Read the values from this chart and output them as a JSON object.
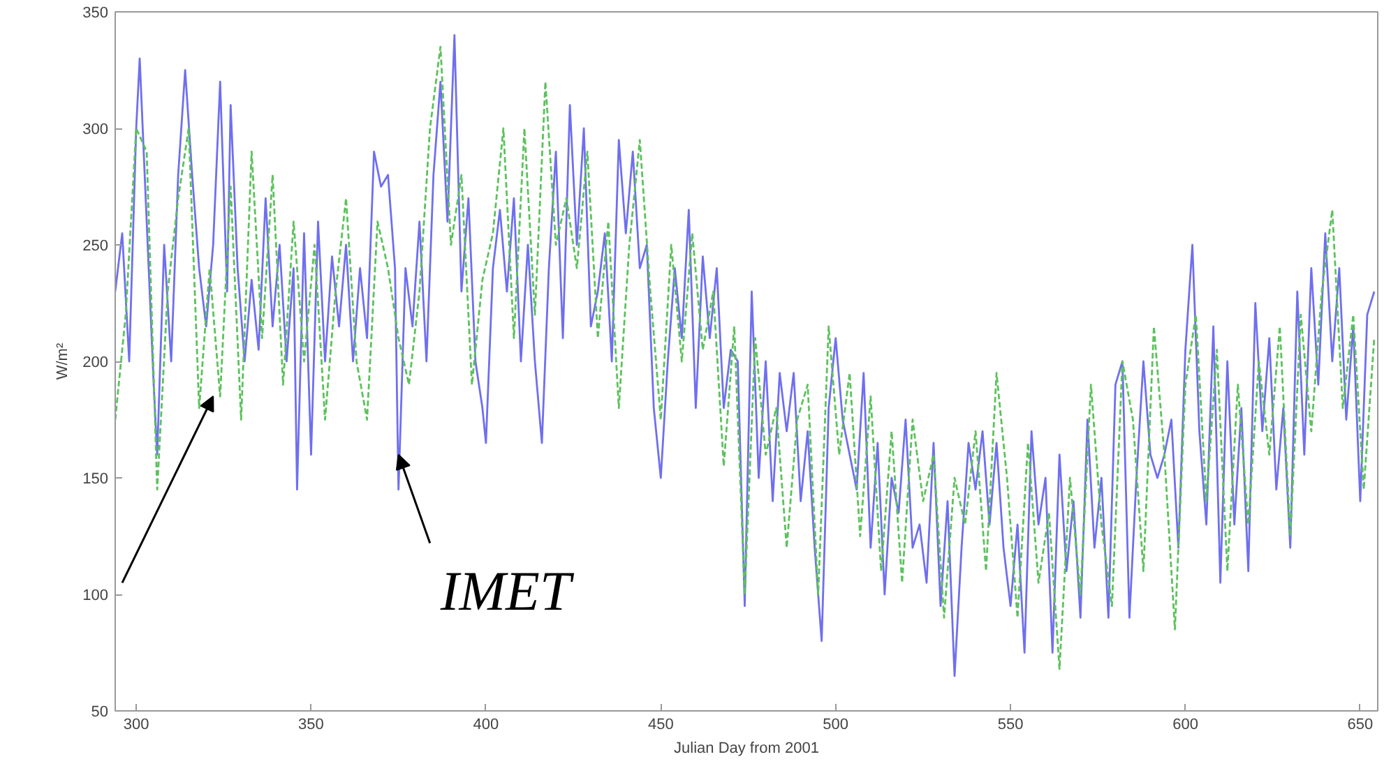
{
  "chart_data": {
    "type": "line",
    "xlabel": "Julian Day from 2001",
    "ylabel": "W/m²",
    "xlim": [
      294,
      655
    ],
    "ylim": [
      50,
      350
    ],
    "xticks": [
      300,
      350,
      400,
      450,
      500,
      550,
      600,
      650
    ],
    "yticks": [
      50,
      100,
      150,
      200,
      250,
      300,
      350
    ],
    "grid": false,
    "series": [
      {
        "name": "IMET",
        "color": "#6f6ff0",
        "line_style": "solid",
        "x": [
          294,
          296,
          298,
          300,
          301,
          303,
          305,
          306,
          308,
          310,
          312,
          314,
          316,
          318,
          320,
          322,
          324,
          326,
          327,
          329,
          331,
          333,
          335,
          337,
          339,
          341,
          343,
          345,
          346,
          348,
          350,
          352,
          354,
          356,
          358,
          360,
          362,
          364,
          366,
          368,
          370,
          372,
          374,
          375,
          377,
          379,
          381,
          383,
          385,
          387,
          389,
          391,
          393,
          395,
          397,
          399,
          400,
          402,
          404,
          406,
          408,
          410,
          412,
          414,
          416,
          418,
          420,
          422,
          424,
          426,
          428,
          430,
          432,
          434,
          436,
          438,
          440,
          442,
          444,
          446,
          448,
          450,
          452,
          454,
          456,
          458,
          460,
          462,
          464,
          466,
          468,
          470,
          472,
          474,
          476,
          478,
          480,
          482,
          484,
          486,
          488,
          490,
          492,
          494,
          496,
          498,
          500,
          502,
          504,
          506,
          508,
          510,
          512,
          514,
          516,
          518,
          520,
          522,
          524,
          526,
          528,
          530,
          532,
          534,
          536,
          538,
          540,
          542,
          544,
          546,
          548,
          550,
          552,
          554,
          556,
          558,
          560,
          562,
          564,
          566,
          568,
          570,
          572,
          574,
          576,
          578,
          580,
          582,
          584,
          586,
          588,
          590,
          592,
          594,
          596,
          598,
          600,
          602,
          604,
          606,
          608,
          610,
          612,
          614,
          616,
          618,
          620,
          622,
          624,
          626,
          628,
          630,
          632,
          634,
          636,
          638,
          640,
          642,
          644,
          646,
          648,
          650,
          652,
          654
        ],
        "values": [
          230,
          255,
          200,
          300,
          330,
          260,
          190,
          160,
          250,
          200,
          280,
          325,
          280,
          240,
          215,
          250,
          320,
          230,
          310,
          240,
          200,
          235,
          205,
          270,
          215,
          250,
          200,
          240,
          145,
          255,
          160,
          260,
          200,
          245,
          215,
          250,
          200,
          240,
          210,
          290,
          275,
          280,
          240,
          145,
          240,
          215,
          260,
          200,
          280,
          320,
          260,
          340,
          230,
          270,
          200,
          180,
          165,
          240,
          265,
          230,
          270,
          200,
          250,
          200,
          165,
          240,
          290,
          210,
          310,
          250,
          300,
          215,
          230,
          255,
          200,
          295,
          255,
          290,
          240,
          250,
          180,
          150,
          200,
          240,
          210,
          265,
          180,
          245,
          210,
          240,
          180,
          205,
          200,
          95,
          230,
          150,
          200,
          140,
          195,
          170,
          195,
          140,
          170,
          120,
          80,
          180,
          210,
          175,
          160,
          145,
          195,
          120,
          165,
          100,
          150,
          135,
          175,
          120,
          130,
          105,
          165,
          95,
          140,
          65,
          120,
          165,
          145,
          170,
          130,
          165,
          120,
          95,
          130,
          75,
          170,
          130,
          150,
          75,
          160,
          110,
          140,
          90,
          175,
          120,
          150,
          90,
          190,
          200,
          90,
          150,
          200,
          160,
          150,
          160,
          175,
          120,
          205,
          250,
          170,
          130,
          215,
          105,
          200,
          130,
          180,
          110,
          225,
          170,
          210,
          145,
          180,
          120,
          230,
          160,
          240,
          190,
          255,
          200,
          240,
          175,
          215,
          140,
          220,
          230
        ]
      },
      {
        "color": "#5cc25c",
        "line_style": "dashed",
        "x": [
          294,
          297,
          300,
          303,
          306,
          309,
          312,
          315,
          318,
          321,
          324,
          327,
          330,
          333,
          336,
          339,
          342,
          345,
          348,
          351,
          354,
          357,
          360,
          363,
          366,
          369,
          372,
          375,
          378,
          381,
          384,
          387,
          390,
          393,
          396,
          399,
          402,
          405,
          408,
          411,
          414,
          417,
          420,
          423,
          426,
          429,
          432,
          435,
          438,
          441,
          444,
          447,
          450,
          453,
          456,
          459,
          462,
          465,
          468,
          471,
          474,
          477,
          480,
          483,
          486,
          489,
          492,
          495,
          498,
          501,
          504,
          507,
          510,
          513,
          516,
          519,
          522,
          525,
          528,
          531,
          534,
          537,
          540,
          543,
          546,
          549,
          552,
          555,
          558,
          561,
          564,
          567,
          570,
          573,
          576,
          579,
          582,
          585,
          588,
          591,
          594,
          597,
          600,
          603,
          606,
          609,
          612,
          615,
          618,
          621,
          624,
          627,
          630,
          633,
          636,
          639,
          642,
          645,
          648,
          651,
          654
        ],
        "values": [
          175,
          220,
          300,
          290,
          145,
          230,
          270,
          300,
          180,
          240,
          185,
          275,
          175,
          290,
          210,
          280,
          190,
          260,
          200,
          250,
          175,
          230,
          270,
          200,
          175,
          260,
          240,
          210,
          190,
          230,
          300,
          335,
          250,
          280,
          190,
          235,
          255,
          300,
          210,
          300,
          220,
          320,
          250,
          270,
          240,
          290,
          210,
          260,
          180,
          250,
          295,
          230,
          175,
          250,
          200,
          255,
          205,
          230,
          155,
          215,
          100,
          210,
          160,
          180,
          120,
          175,
          190,
          100,
          215,
          160,
          195,
          125,
          185,
          110,
          170,
          105,
          175,
          140,
          160,
          90,
          150,
          130,
          170,
          110,
          195,
          150,
          90,
          165,
          105,
          135,
          68,
          150,
          100,
          190,
          130,
          95,
          200,
          175,
          110,
          215,
          160,
          85,
          190,
          220,
          140,
          205,
          110,
          190,
          130,
          200,
          160,
          215,
          125,
          220,
          170,
          230,
          265,
          180,
          220,
          145,
          210
        ]
      }
    ]
  }
}
